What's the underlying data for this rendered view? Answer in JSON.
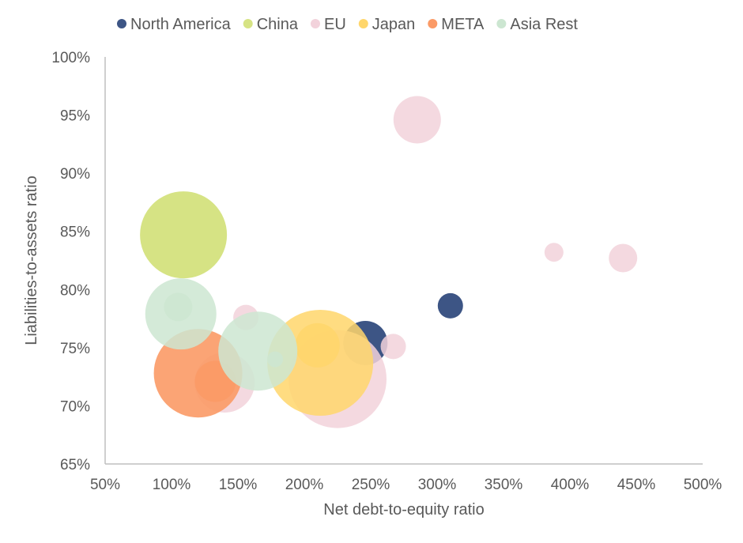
{
  "chart_data": {
    "type": "bubble",
    "xlabel": "Net debt-to-equity ratio",
    "ylabel": "Liabilities-to-assets ratio",
    "xlim": [
      0.5,
      5.0
    ],
    "ylim": [
      0.65,
      1.0
    ],
    "xticks": [
      0.5,
      1.0,
      1.5,
      2.0,
      2.5,
      3.0,
      3.5,
      4.0,
      4.5,
      5.0
    ],
    "yticks": [
      0.65,
      0.7,
      0.75,
      0.8,
      0.85,
      0.9,
      0.95,
      1.0
    ],
    "xtick_labels": [
      "50%",
      "100%",
      "150%",
      "200%",
      "250%",
      "300%",
      "350%",
      "400%",
      "450%",
      "500%"
    ],
    "ytick_labels": [
      "65%",
      "70%",
      "75%",
      "80%",
      "85%",
      "90%",
      "95%",
      "100%"
    ],
    "legend_position": "top",
    "grid": false,
    "series": [
      {
        "name": "North America",
        "color": "#3d5585",
        "opacity": 1,
        "points": [
          {
            "x": 2.46,
            "y": 0.754,
            "size": 28
          },
          {
            "x": 3.1,
            "y": 0.786,
            "size": 16
          }
        ]
      },
      {
        "name": "China",
        "color": "#d6e384",
        "opacity": 1,
        "points": [
          {
            "x": 1.09,
            "y": 0.847,
            "size": 55
          }
        ]
      },
      {
        "name": "EU",
        "color": "#f2d2db",
        "opacity": 0.85,
        "points": [
          {
            "x": 2.85,
            "y": 0.946,
            "size": 30
          },
          {
            "x": 3.88,
            "y": 0.832,
            "size": 12
          },
          {
            "x": 4.4,
            "y": 0.827,
            "size": 18
          },
          {
            "x": 1.56,
            "y": 0.776,
            "size": 16
          },
          {
            "x": 2.67,
            "y": 0.751,
            "size": 16
          },
          {
            "x": 1.4,
            "y": 0.72,
            "size": 38
          },
          {
            "x": 2.25,
            "y": 0.723,
            "size": 62
          }
        ]
      },
      {
        "name": "Japan",
        "color": "#ffd66b",
        "opacity": 0.85,
        "points": [
          {
            "x": 2.12,
            "y": 0.737,
            "size": 67
          },
          {
            "x": 2.1,
            "y": 0.752,
            "size": 28
          }
        ]
      },
      {
        "name": "META",
        "color": "#fb9a66",
        "opacity": 0.9,
        "points": [
          {
            "x": 1.2,
            "y": 0.728,
            "size": 56
          },
          {
            "x": 1.33,
            "y": 0.721,
            "size": 26
          }
        ]
      },
      {
        "name": "Asia Rest",
        "color": "#cce6d1",
        "opacity": 0.85,
        "points": [
          {
            "x": 1.07,
            "y": 0.779,
            "size": 45
          },
          {
            "x": 1.05,
            "y": 0.785,
            "size": 18
          },
          {
            "x": 1.65,
            "y": 0.747,
            "size": 50
          },
          {
            "x": 1.78,
            "y": 0.74,
            "size": 10
          }
        ]
      }
    ]
  }
}
